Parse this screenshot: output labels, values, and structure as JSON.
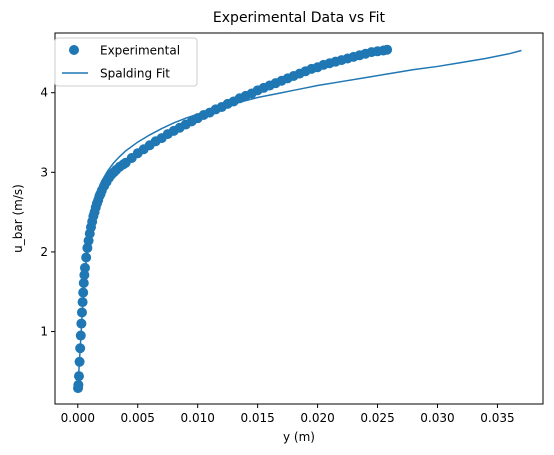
{
  "chart_data": {
    "type": "scatter",
    "title": "Experimental Data vs Fit",
    "xlabel": "y (m)",
    "ylabel": "u_bar (m/s)",
    "xlim": [
      -0.0019,
      0.0388
    ],
    "ylim": [
      0.09,
      4.75
    ],
    "xticks": [
      0.0,
      0.005,
      0.01,
      0.015,
      0.02,
      0.025,
      0.03,
      0.035
    ],
    "xtick_labels": [
      "0.000",
      "0.005",
      "0.010",
      "0.015",
      "0.020",
      "0.025",
      "0.030",
      "0.035"
    ],
    "yticks": [
      1,
      2,
      3,
      4
    ],
    "ytick_labels": [
      "1",
      "2",
      "3",
      "4"
    ],
    "grid": false,
    "legend": "top-left",
    "color": "#1f77b4",
    "series": [
      {
        "name": "Experimental",
        "kind": "scatter",
        "x": [
          2e-05,
          5e-05,
          0.0001,
          0.00015,
          0.0002,
          0.00025,
          0.0003,
          0.00035,
          0.0004,
          0.00045,
          0.0005,
          0.00055,
          0.0006,
          0.0007,
          0.0008,
          0.0009,
          0.001,
          0.0011,
          0.0012,
          0.0013,
          0.0014,
          0.0015,
          0.0016,
          0.0017,
          0.0018,
          0.0019,
          0.002,
          0.0022,
          0.0024,
          0.0026,
          0.0028,
          0.003,
          0.0032,
          0.0035,
          0.0038,
          0.004,
          0.0045,
          0.005,
          0.0055,
          0.006,
          0.0065,
          0.007,
          0.0075,
          0.008,
          0.0085,
          0.009,
          0.0095,
          0.01,
          0.0105,
          0.011,
          0.0115,
          0.012,
          0.0125,
          0.013,
          0.0135,
          0.014,
          0.0145,
          0.015,
          0.0155,
          0.016,
          0.0165,
          0.017,
          0.0175,
          0.018,
          0.0185,
          0.019,
          0.0195,
          0.02,
          0.0205,
          0.021,
          0.0215,
          0.022,
          0.0225,
          0.023,
          0.0235,
          0.024,
          0.0245,
          0.025,
          0.0255,
          0.0258
        ],
        "y": [
          0.29,
          0.33,
          0.44,
          0.62,
          0.79,
          0.95,
          1.1,
          1.24,
          1.37,
          1.49,
          1.61,
          1.71,
          1.8,
          1.93,
          2.05,
          2.14,
          2.23,
          2.31,
          2.38,
          2.45,
          2.5,
          2.56,
          2.61,
          2.65,
          2.7,
          2.73,
          2.77,
          2.83,
          2.88,
          2.93,
          2.97,
          3.0,
          3.03,
          3.07,
          3.1,
          3.12,
          3.18,
          3.24,
          3.29,
          3.34,
          3.39,
          3.43,
          3.48,
          3.52,
          3.56,
          3.6,
          3.64,
          3.68,
          3.72,
          3.75,
          3.79,
          3.82,
          3.86,
          3.89,
          3.93,
          3.96,
          3.99,
          4.03,
          4.06,
          4.09,
          4.12,
          4.15,
          4.18,
          4.21,
          4.24,
          4.27,
          4.3,
          4.32,
          4.35,
          4.37,
          4.39,
          4.41,
          4.43,
          4.45,
          4.47,
          4.49,
          4.51,
          4.52,
          4.53,
          4.54
        ]
      },
      {
        "name": "Spalding Fit",
        "kind": "line",
        "x": [
          0.0,
          0.0002,
          0.0004,
          0.0006,
          0.0008,
          0.001,
          0.0012,
          0.0014,
          0.0016,
          0.0018,
          0.002,
          0.0025,
          0.003,
          0.0035,
          0.004,
          0.005,
          0.006,
          0.007,
          0.008,
          0.009,
          0.01,
          0.011,
          0.012,
          0.013,
          0.014,
          0.015,
          0.016,
          0.017,
          0.018,
          0.019,
          0.02,
          0.022,
          0.024,
          0.026,
          0.028,
          0.03,
          0.032,
          0.034,
          0.036,
          0.037
        ],
        "y": [
          0.28,
          0.78,
          1.3,
          1.72,
          2.06,
          2.32,
          2.51,
          2.64,
          2.74,
          2.82,
          2.89,
          3.02,
          3.12,
          3.2,
          3.27,
          3.38,
          3.47,
          3.55,
          3.62,
          3.68,
          3.73,
          3.78,
          3.82,
          3.86,
          3.9,
          3.94,
          3.97,
          4.0,
          4.03,
          4.06,
          4.09,
          4.14,
          4.19,
          4.24,
          4.29,
          4.33,
          4.38,
          4.43,
          4.49,
          4.53
        ]
      }
    ]
  }
}
